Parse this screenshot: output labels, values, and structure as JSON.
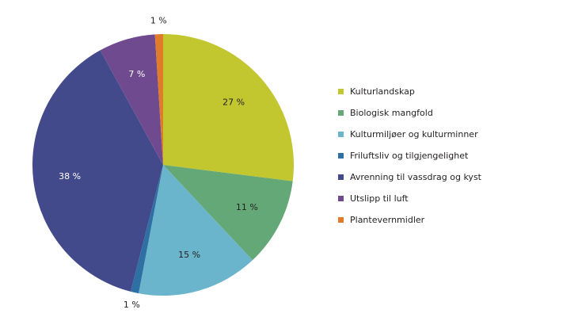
{
  "chart_data": {
    "type": "pie",
    "categories": [
      "Kulturlandskap",
      "Biologisk mangfold",
      "Kulturmiljøer og kulturminner",
      "Friluftsliv og tilgjengelighet",
      "Avrenning til vassdrag og kyst",
      "Utslipp til luft",
      "Plantevernmidler"
    ],
    "values": [
      27,
      11,
      15,
      1,
      38,
      7,
      1
    ],
    "value_labels": [
      "27 %",
      "11 %",
      "15 %",
      "1 %",
      "38 %",
      "7 %",
      "1 %"
    ],
    "colors": [
      "#c2c62f",
      "#64a878",
      "#6bb5cc",
      "#2e6fa4",
      "#434a8c",
      "#6f4a8f",
      "#e07b2a"
    ],
    "legend": "right"
  }
}
